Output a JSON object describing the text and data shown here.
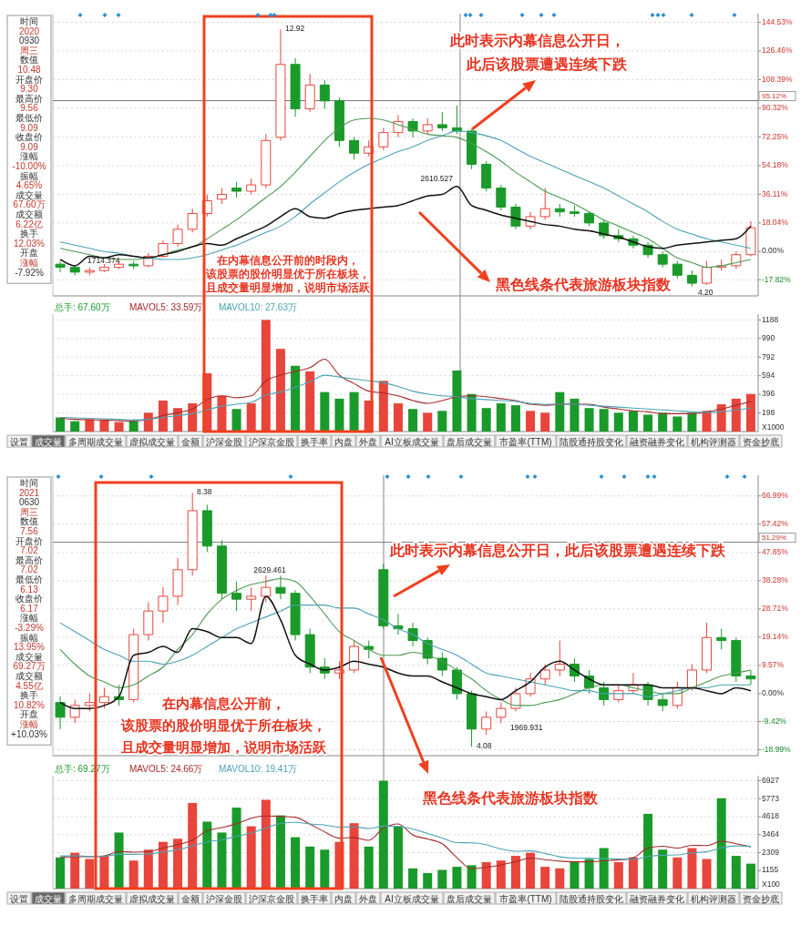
{
  "chart_data": [
    {
      "type": "candlestick",
      "categories": [
        null,
        null,
        null,
        null,
        null,
        null,
        null,
        null,
        null,
        null,
        null,
        null,
        null,
        null,
        null,
        null,
        null,
        null,
        null,
        null,
        null,
        null,
        null,
        null,
        null,
        null,
        null,
        null,
        null,
        null,
        null,
        null,
        null,
        null,
        null,
        null,
        null,
        null,
        null,
        null,
        null,
        null,
        null,
        null,
        null,
        null,
        null,
        null
      ],
      "ohlc": [
        [
          -8,
          -6,
          -13,
          -10
        ],
        [
          -10,
          -9,
          -15,
          -13
        ],
        [
          -13,
          -10,
          -15,
          -12
        ],
        [
          -12,
          -8,
          -13,
          -10
        ],
        [
          -10,
          -6,
          -11,
          -8
        ],
        [
          -8,
          -6,
          -11,
          -9
        ],
        [
          -9,
          -1,
          -10,
          -3
        ],
        [
          -3,
          7,
          -4,
          5
        ],
        [
          5,
          17,
          3,
          14
        ],
        [
          14,
          27,
          12,
          24
        ],
        [
          24,
          36,
          22,
          32
        ],
        [
          33,
          40,
          30,
          36
        ],
        [
          40,
          44,
          34,
          38
        ],
        [
          38,
          46,
          36,
          42
        ],
        [
          42,
          74,
          40,
          70
        ],
        [
          72,
          140,
          70,
          118
        ],
        [
          118,
          122,
          85,
          90
        ],
        [
          90,
          112,
          88,
          105
        ],
        [
          105,
          108,
          90,
          95
        ],
        [
          95,
          97,
          66,
          70
        ],
        [
          70,
          72,
          58,
          62
        ],
        [
          62,
          70,
          60,
          66
        ],
        [
          66,
          78,
          64,
          75
        ],
        [
          75,
          86,
          72,
          82
        ],
        [
          82,
          84,
          72,
          76
        ],
        [
          76,
          84,
          74,
          80
        ],
        [
          80,
          88,
          76,
          78
        ],
        [
          78,
          92,
          74,
          76
        ],
        [
          76,
          77,
          52,
          55
        ],
        [
          55,
          57,
          38,
          40
        ],
        [
          40,
          42,
          26,
          28
        ],
        [
          28,
          30,
          14,
          16
        ],
        [
          16,
          25,
          14,
          22
        ],
        [
          22,
          40,
          20,
          27
        ],
        [
          27,
          30,
          22,
          25
        ],
        [
          25,
          29,
          22,
          24
        ],
        [
          24,
          25,
          16,
          18
        ],
        [
          18,
          20,
          8,
          10
        ],
        [
          10,
          14,
          6,
          8
        ],
        [
          8,
          10,
          2,
          4
        ],
        [
          4,
          6,
          -4,
          -2
        ],
        [
          -2,
          0,
          -10,
          -8
        ],
        [
          -8,
          -6,
          -17,
          -15
        ],
        [
          -15,
          -12,
          -22,
          -20
        ],
        [
          -20,
          -6,
          -21,
          -10
        ],
        [
          -10,
          -5,
          -12,
          -9
        ],
        [
          -9,
          0,
          -11,
          -2
        ],
        [
          -2,
          19,
          -3,
          15
        ]
      ],
      "colors": [
        "#1a9a2a",
        "#1a9a2a",
        "#e8453c",
        "#e8453c",
        "#e8453c",
        "#1a9a2a",
        "#e8453c",
        "#e8453c",
        "#e8453c",
        "#e8453c",
        "#e8453c",
        "#e8453c",
        "#1a9a2a",
        "#e8453c",
        "#e8453c",
        "#e8453c",
        "#1a9a2a",
        "#e8453c",
        "#1a9a2a",
        "#1a9a2a",
        "#1a9a2a",
        "#e8453c",
        "#e8453c",
        "#e8453c",
        "#1a9a2a",
        "#e8453c",
        "#1a9a2a",
        "#1a9a2a",
        "#1a9a2a",
        "#1a9a2a",
        "#1a9a2a",
        "#1a9a2a",
        "#e8453c",
        "#e8453c",
        "#1a9a2a",
        "#1a9a2a",
        "#1a9a2a",
        "#1a9a2a",
        "#1a9a2a",
        "#1a9a2a",
        "#1a9a2a",
        "#1a9a2a",
        "#1a9a2a",
        "#1a9a2a",
        "#e8453c",
        "#e8453c",
        "#e8453c",
        "#e8453c"
      ],
      "series": [
        {
          "type": "line",
          "color": "#111111",
          "values": [
            -5,
            -9,
            -3,
            -4,
            -2,
            -3,
            -4,
            -2,
            0,
            3,
            5,
            4,
            8,
            12,
            16,
            22,
            27,
            22,
            21,
            24,
            26,
            27,
            28,
            29,
            32,
            35,
            36,
            41,
            29,
            26,
            23,
            21,
            19,
            17,
            16,
            14,
            13,
            11,
            9,
            6,
            3,
            2,
            4,
            5,
            6,
            7,
            8,
            16
          ]
        },
        {
          "type": "line",
          "color": "#4aa3b5",
          "values": [
            6,
            4,
            2,
            0,
            -1,
            -3,
            -4,
            -5,
            -5,
            -4,
            -2,
            1,
            4,
            8,
            12,
            16,
            22,
            30,
            37,
            44,
            50,
            55,
            59,
            63,
            66,
            70,
            73,
            76,
            75,
            73,
            70,
            65,
            60,
            56,
            52,
            48,
            44,
            40,
            35,
            30,
            25,
            19,
            14,
            11,
            8,
            6,
            4,
            2
          ]
        },
        {
          "type": "line",
          "color": "#4c9a52",
          "values": [
            2,
            0,
            -2,
            -4,
            -5,
            -5,
            -4,
            -2,
            1,
            3,
            8,
            14,
            20,
            27,
            34,
            41,
            50,
            60,
            70,
            78,
            83,
            84,
            83,
            80,
            77,
            74,
            73,
            72,
            68,
            63,
            57,
            50,
            44,
            38,
            34,
            30,
            25,
            20,
            16,
            12,
            8,
            2,
            -4,
            -7,
            -10,
            -9,
            -7,
            -5
          ]
        }
      ],
      "ylim": [
        -28,
        150
      ],
      "yticks": [
        {
          "value": 144.53,
          "label": "144.53%"
        },
        {
          "value": 126.46,
          "label": "126.46%"
        },
        {
          "value": 108.39,
          "label": "108.39%"
        },
        {
          "value": 90.32,
          "label": "90.32%"
        },
        {
          "value": 72.25,
          "label": "72.25%"
        },
        {
          "value": 54.18,
          "label": "54.18%"
        },
        {
          "value": 36.11,
          "label": "36.11%"
        },
        {
          "value": 18.04,
          "label": "18.04%"
        },
        {
          "value": 0,
          "label": "0.00%"
        },
        {
          "value": -17.82,
          "label": "-17.82%"
        }
      ],
      "grid": "y",
      "tick_labels": "y",
      "ref_lines": [
        {
          "axis": "y",
          "value": 95.12,
          "label": "95.12%"
        }
      ],
      "annotations": [
        "此时表示内幕信息公开日，",
        "此后该股票遭遇连续下跌",
        "在内幕信息公开前的时段内，",
        "该股票的股价明显优于所在板块，",
        "且成交量明显增加，说明市场活跃",
        "黑色线条代表旅游板块指数",
        "12.92",
        "4.20",
        "2610.527",
        "1714.374",
        "时间",
        "2020",
        "0930",
        "周三",
        "数值",
        "10.48",
        "开盘价",
        "9.30",
        "最高价",
        "9.56",
        "最低价",
        "9.09",
        "收盘价",
        "9.09",
        "涨幅",
        "-10.00%",
        "振幅",
        "4.65%",
        "成交量",
        "67.60万",
        "成交额",
        "6.22亿",
        "换手",
        "12.03%",
        "开盘",
        "涨幅",
        "-7.92%"
      ]
    },
    {
      "type": "bar",
      "categories": [
        null,
        null,
        null,
        null,
        null,
        null,
        null,
        null,
        null,
        null,
        null,
        null,
        null,
        null,
        null,
        null,
        null,
        null,
        null,
        null,
        null,
        null,
        null,
        null,
        null,
        null,
        null,
        null,
        null,
        null,
        null,
        null,
        null,
        null,
        null,
        null,
        null,
        null,
        null,
        null,
        null,
        null,
        null,
        null,
        null,
        null,
        null,
        null
      ],
      "series": [
        {
          "name": "总手: 67.60万",
          "colors": [
            "#1a9a2a",
            "#1a9a2a",
            "#e8453c",
            "#e8453c",
            "#e8453c",
            "#1a9a2a",
            "#e8453c",
            "#e8453c",
            "#e8453c",
            "#e8453c",
            "#e8453c",
            "#e8453c",
            "#1a9a2a",
            "#e8453c",
            "#e8453c",
            "#e8453c",
            "#1a9a2a",
            "#e8453c",
            "#1a9a2a",
            "#1a9a2a",
            "#1a9a2a",
            "#e8453c",
            "#e8453c",
            "#e8453c",
            "#1a9a2a",
            "#e8453c",
            "#1a9a2a",
            "#1a9a2a",
            "#1a9a2a",
            "#1a9a2a",
            "#1a9a2a",
            "#1a9a2a",
            "#e8453c",
            "#e8453c",
            "#1a9a2a",
            "#1a9a2a",
            "#1a9a2a",
            "#1a9a2a",
            "#1a9a2a",
            "#1a9a2a",
            "#1a9a2a",
            "#1a9a2a",
            "#1a9a2a",
            "#1a9a2a",
            "#e8453c",
            "#e8453c",
            "#e8453c",
            "#e8453c"
          ],
          "color": "#1a9a2a",
          "values": [
            150,
            110,
            130,
            120,
            100,
            110,
            200,
            330,
            250,
            300,
            620,
            380,
            240,
            300,
            1188,
            880,
            700,
            640,
            420,
            350,
            420,
            330,
            540,
            300,
            240,
            200,
            220,
            650,
            400,
            250,
            300,
            280,
            220,
            200,
            420,
            350,
            250,
            240,
            200,
            220,
            180,
            200,
            160,
            200,
            220,
            290,
            350,
            400
          ]
        },
        {
          "type": "line",
          "name": "MAVOL5: 33.59万",
          "color": "#a52a2a",
          "values": [
            140,
            130,
            125,
            122,
            115,
            112,
            130,
            170,
            200,
            240,
            340,
            380,
            360,
            380,
            540,
            600,
            640,
            680,
            770,
            600,
            510,
            430,
            410,
            380,
            330,
            300,
            330,
            370,
            380,
            370,
            350,
            330,
            290,
            280,
            290,
            290,
            290,
            260,
            240,
            220,
            210,
            190,
            190,
            190,
            210,
            240,
            280,
            320
          ]
        },
        {
          "type": "line",
          "name": "MAVOL10: 27.63万",
          "color": "#4aa3b5",
          "values": [
            150,
            145,
            140,
            135,
            130,
            125,
            130,
            150,
            170,
            190,
            230,
            270,
            290,
            310,
            390,
            420,
            470,
            530,
            600,
            580,
            560,
            540,
            520,
            480,
            430,
            400,
            380,
            370,
            350,
            340,
            330,
            320,
            300,
            290,
            290,
            290,
            280,
            270,
            260,
            250,
            240,
            230,
            220,
            210,
            205,
            210,
            230,
            250
          ]
        }
      ],
      "ylim": [
        0,
        1250
      ],
      "yticks": [
        198,
        396,
        594,
        792,
        990,
        1188
      ],
      "grid": "y",
      "tick_labels": "y",
      "legend": "top left",
      "annotations": [
        "X1000",
        "设置",
        "成交量",
        "多周期成交量",
        "虚拟成交量",
        "金额",
        "沪深金股",
        "沪深京金股",
        "换手率",
        "内盘",
        "外盘",
        "AI立板成交量",
        "盘后成交量",
        "市盈率(TTM)",
        "陆股通持股变化",
        "融资融券变化",
        "机构评测器",
        "资金抄底"
      ]
    },
    {
      "type": "candlestick",
      "categories": [
        null,
        null,
        null,
        null,
        null,
        null,
        null,
        null,
        null,
        null,
        null,
        null,
        null,
        null,
        null,
        null,
        null,
        null,
        null,
        null,
        null,
        null,
        null,
        null,
        null,
        null,
        null,
        null,
        null,
        null,
        null,
        null,
        null,
        null,
        null,
        null,
        null,
        null,
        null,
        null,
        null,
        null,
        null,
        null,
        null,
        null,
        null,
        null
      ],
      "ohlc": [
        [
          -3,
          -1,
          -12,
          -8
        ],
        [
          -8,
          -2,
          -10,
          -4
        ],
        [
          -4,
          0,
          -6,
          -3
        ],
        [
          -3,
          2,
          -5,
          -1
        ],
        [
          -1,
          3,
          -4,
          -2
        ],
        [
          -2,
          22,
          -3,
          20
        ],
        [
          20,
          31,
          18,
          28
        ],
        [
          28,
          36,
          24,
          33
        ],
        [
          33,
          46,
          30,
          42
        ],
        [
          42,
          68,
          40,
          62
        ],
        [
          62,
          64,
          48,
          50
        ],
        [
          50,
          52,
          32,
          34
        ],
        [
          34,
          38,
          28,
          32
        ],
        [
          32,
          36,
          28,
          33
        ],
        [
          33,
          40,
          31,
          36
        ],
        [
          36,
          40,
          32,
          34
        ],
        [
          34,
          35,
          18,
          20
        ],
        [
          20,
          22,
          7,
          9
        ],
        [
          9,
          12,
          5,
          7
        ],
        [
          7,
          11,
          5,
          8
        ],
        [
          8,
          18,
          7,
          16
        ],
        [
          16,
          18,
          12,
          15
        ],
        [
          42,
          44,
          22,
          23
        ],
        [
          23,
          27,
          20,
          22
        ],
        [
          22,
          24,
          16,
          18
        ],
        [
          18,
          19,
          10,
          12
        ],
        [
          12,
          14,
          6,
          8
        ],
        [
          8,
          9,
          -2,
          0
        ],
        [
          0,
          1,
          -18,
          -12
        ],
        [
          -12,
          -6,
          -14,
          -8
        ],
        [
          -8,
          -3,
          -10,
          -5
        ],
        [
          -5,
          2,
          -6,
          0
        ],
        [
          0,
          7,
          -1,
          5
        ],
        [
          5,
          10,
          3,
          8
        ],
        [
          8,
          18,
          6,
          10
        ],
        [
          10,
          12,
          4,
          6
        ],
        [
          6,
          8,
          0,
          2
        ],
        [
          2,
          4,
          -4,
          -2
        ],
        [
          -2,
          3,
          -3,
          1
        ],
        [
          1,
          7,
          0,
          3
        ],
        [
          3,
          4,
          -4,
          -2
        ],
        [
          -2,
          0,
          -6,
          -4
        ],
        [
          -4,
          4,
          -5,
          2
        ],
        [
          2,
          10,
          1,
          8
        ],
        [
          8,
          24,
          7,
          19
        ],
        [
          19,
          22,
          15,
          18
        ],
        [
          18,
          19,
          4,
          6
        ],
        [
          6,
          8,
          3,
          5
        ]
      ],
      "colors": [
        "#1a9a2a",
        "#e8453c",
        "#e8453c",
        "#e8453c",
        "#1a9a2a",
        "#e8453c",
        "#e8453c",
        "#e8453c",
        "#e8453c",
        "#e8453c",
        "#1a9a2a",
        "#1a9a2a",
        "#1a9a2a",
        "#e8453c",
        "#e8453c",
        "#1a9a2a",
        "#1a9a2a",
        "#1a9a2a",
        "#1a9a2a",
        "#e8453c",
        "#e8453c",
        "#1a9a2a",
        "#1a9a2a",
        "#1a9a2a",
        "#1a9a2a",
        "#1a9a2a",
        "#1a9a2a",
        "#1a9a2a",
        "#1a9a2a",
        "#e8453c",
        "#e8453c",
        "#e8453c",
        "#e8453c",
        "#e8453c",
        "#e8453c",
        "#1a9a2a",
        "#1a9a2a",
        "#1a9a2a",
        "#e8453c",
        "#e8453c",
        "#1a9a2a",
        "#1a9a2a",
        "#e8453c",
        "#e8453c",
        "#e8453c",
        "#1a9a2a",
        "#1a9a2a",
        "#1a9a2a"
      ],
      "series": [
        {
          "type": "line",
          "color": "#111111",
          "values": [
            -3,
            -5,
            -5,
            -4,
            -1,
            13,
            14,
            16,
            14,
            22,
            21,
            19,
            19,
            17,
            33,
            25,
            13,
            10,
            8,
            9,
            11,
            10,
            9,
            7,
            6,
            6,
            4,
            2,
            0,
            -1,
            -2,
            1,
            4,
            9,
            11,
            8,
            5,
            3,
            3,
            3,
            3,
            2,
            2,
            2,
            1,
            0,
            2,
            1
          ]
        },
        {
          "type": "line",
          "color": "#4aa3b5",
          "values": [
            24,
            21,
            18,
            15,
            13,
            11,
            11,
            10,
            11,
            13,
            16,
            19,
            22,
            24,
            26,
            28,
            30,
            30,
            30,
            29,
            29,
            27,
            25,
            22,
            20,
            17,
            15,
            13,
            10,
            7,
            6,
            5,
            4,
            3,
            2,
            1,
            1,
            0,
            0,
            0,
            -1,
            0,
            1,
            2,
            2,
            3,
            3,
            3
          ]
        },
        {
          "type": "line",
          "color": "#4c9a52",
          "values": [
            15,
            10,
            6,
            4,
            2,
            3,
            6,
            9,
            15,
            20,
            27,
            32,
            35,
            37,
            38,
            39,
            38,
            33,
            27,
            21,
            18,
            15,
            13,
            13,
            14,
            13,
            11,
            8,
            5,
            1,
            -2,
            -4,
            -4,
            -3,
            -2,
            0,
            2,
            3,
            3,
            2,
            1,
            0,
            0,
            2,
            4,
            6,
            7,
            8
          ]
        }
      ],
      "ylim": [
        -21,
        74
      ],
      "yticks": [
        {
          "value": 66.99,
          "label": "66.99%"
        },
        {
          "value": 57.42,
          "label": "57.42%"
        },
        {
          "value": 47.85,
          "label": "47.85%"
        },
        {
          "value": 38.28,
          "label": "38.28%"
        },
        {
          "value": 28.71,
          "label": "28.71%"
        },
        {
          "value": 19.14,
          "label": "19.14%"
        },
        {
          "value": 9.57,
          "label": "9.57%"
        },
        {
          "value": 0,
          "label": "0.00%"
        },
        {
          "value": -9.42,
          "label": "-9.42%"
        },
        {
          "value": -18.99,
          "label": "-18.99%"
        }
      ],
      "grid": "y",
      "tick_labels": "y",
      "ref_lines": [
        {
          "axis": "y",
          "value": 51.29,
          "label": "51.29%"
        }
      ],
      "annotations": [
        "此时表示内幕信息公开日，此后该股票遭遇连续下跌",
        "在内幕信息公开前，",
        "该股票的股价明显优于所在板块，",
        "且成交量明显增加，说明市场活跃",
        "黑色线条代表旅游板块指数",
        "8.38",
        "4.08",
        "2629.461",
        "1969.931",
        "时间",
        "2021",
        "0630",
        "周三",
        "数值",
        "7.56",
        "开盘价",
        "7.02",
        "最高价",
        "7.02",
        "最低价",
        "6.13",
        "收盘价",
        "6.17",
        "涨幅",
        "-3.29%",
        "振幅",
        "13.95%",
        "成交量",
        "69.27万",
        "成交额",
        "4.55亿",
        "换手",
        "10.82%",
        "开盘",
        "涨幅",
        "+10.03%"
      ]
    },
    {
      "type": "bar",
      "categories": [
        null,
        null,
        null,
        null,
        null,
        null,
        null,
        null,
        null,
        null,
        null,
        null,
        null,
        null,
        null,
        null,
        null,
        null,
        null,
        null,
        null,
        null,
        null,
        null,
        null,
        null,
        null,
        null,
        null,
        null,
        null,
        null,
        null,
        null,
        null,
        null,
        null,
        null,
        null,
        null,
        null,
        null,
        null,
        null,
        null,
        null,
        null,
        null
      ],
      "series": [
        {
          "name": "总手: 69.27万",
          "colors": [
            "#1a9a2a",
            "#e8453c",
            "#e8453c",
            "#e8453c",
            "#1a9a2a",
            "#e8453c",
            "#e8453c",
            "#e8453c",
            "#e8453c",
            "#e8453c",
            "#1a9a2a",
            "#1a9a2a",
            "#1a9a2a",
            "#e8453c",
            "#e8453c",
            "#1a9a2a",
            "#1a9a2a",
            "#1a9a2a",
            "#1a9a2a",
            "#e8453c",
            "#e8453c",
            "#1a9a2a",
            "#1a9a2a",
            "#1a9a2a",
            "#1a9a2a",
            "#1a9a2a",
            "#1a9a2a",
            "#1a9a2a",
            "#1a9a2a",
            "#e8453c",
            "#e8453c",
            "#e8453c",
            "#e8453c",
            "#e8453c",
            "#e8453c",
            "#1a9a2a",
            "#1a9a2a",
            "#1a9a2a",
            "#e8453c",
            "#e8453c",
            "#1a9a2a",
            "#1a9a2a",
            "#e8453c",
            "#e8453c",
            "#e8453c",
            "#1a9a2a",
            "#1a9a2a",
            "#1a9a2a"
          ],
          "color": "#1a9a2a",
          "values": [
            2000,
            2300,
            1900,
            2100,
            3600,
            1800,
            2500,
            3000,
            3200,
            5500,
            4300,
            3600,
            5200,
            4000,
            5700,
            4700,
            3300,
            2700,
            2500,
            3000,
            4200,
            2700,
            6927,
            4000,
            1300,
            1000,
            1200,
            1400,
            1500,
            1700,
            1800,
            2100,
            2300,
            1400,
            1300,
            1700,
            1900,
            2600,
            1700,
            2000,
            4800,
            2500,
            2000,
            2600,
            1900,
            5800,
            2100,
            1600
          ]
        },
        {
          "type": "line",
          "name": "MAVOL5: 24.66万",
          "color": "#a52a2a",
          "values": [
            2000,
            2050,
            2050,
            2100,
            2380,
            2340,
            2380,
            2600,
            2820,
            3120,
            3700,
            3920,
            4160,
            4520,
            4660,
            4640,
            4580,
            4140,
            3640,
            3240,
            3280,
            3100,
            3880,
            4150,
            3440,
            3190,
            2880,
            1980,
            1280,
            1360,
            1520,
            1720,
            1960,
            1860,
            1760,
            1720,
            1720,
            1780,
            1840,
            1980,
            2600,
            2720,
            2600,
            2780,
            2760,
            3040,
            2880,
            2680
          ]
        },
        {
          "type": "line",
          "name": "MAVOL10: 19.41万",
          "color": "#4aa3b5",
          "values": [
            2100,
            2100,
            2080,
            2080,
            2200,
            2200,
            2220,
            2350,
            2480,
            2750,
            3000,
            3130,
            3360,
            3570,
            3890,
            4180,
            4250,
            4150,
            4080,
            3950,
            3960,
            3860,
            4010,
            3990,
            3820,
            3540,
            3240,
            2950,
            2940,
            2820,
            2540,
            2400,
            2420,
            2260,
            2040,
            1960,
            1950,
            1920,
            1900,
            1880,
            2060,
            2140,
            2160,
            2300,
            2360,
            2620,
            2740,
            2720
          ]
        }
      ],
      "ylim": [
        0,
        7250
      ],
      "yticks": [
        1155,
        2309,
        3464,
        4618,
        5773,
        6927
      ],
      "grid": "y",
      "tick_labels": "y",
      "legend": "top left",
      "annotations": [
        "X100",
        "设置",
        "成交量",
        "多周期成交量",
        "虚拟成交量",
        "金额",
        "沪深金股",
        "沪深京金股",
        "换手率",
        "内盘",
        "外盘",
        "AI立板成交量",
        "盘后成交量",
        "市盈率(TTM)",
        "陆股通持股变化",
        "融资融券变化",
        "机构评测器",
        "资金抄底"
      ]
    }
  ]
}
